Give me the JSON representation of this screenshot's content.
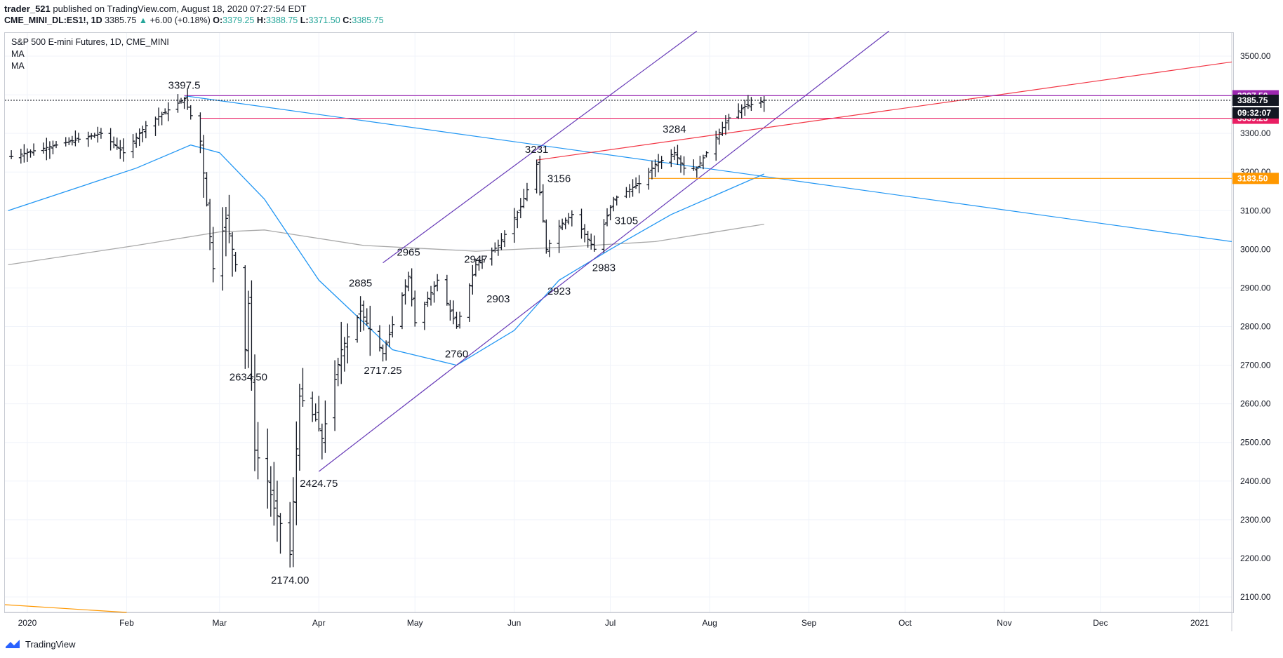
{
  "header": {
    "user": "trader_521",
    "published": " published on TradingView.com, August 18, 2020 07:27:54 EDT",
    "symbol": "CME_MINI_DL:ES1!, 1D",
    "last": "3385.75",
    "change": "+6.00 (+0.18%)",
    "o_label": "O:",
    "o_val": "3379.25",
    "h_label": "H:",
    "h_val": "3388.75",
    "l_label": "L:",
    "l_val": "3371.50",
    "c_label": "C:",
    "c_val": "3385.75"
  },
  "legend": {
    "title": "S&P 500 E-mini Futures, 1D, CME_MINI",
    "ma1": "MA",
    "ma2": "MA"
  },
  "footer": {
    "brand": "TradingView"
  },
  "chart_data": {
    "type": "bar",
    "title": "S&P 500 E-mini Futures, 1D, CME_MINI",
    "ylim": [
      2060,
      3560
    ],
    "y_ticks": [
      2100,
      2200,
      2300,
      2400,
      2500,
      2600,
      2700,
      2800,
      2900,
      3000,
      3100,
      3200,
      3300,
      3400,
      3500
    ],
    "x_ticks": [
      {
        "label": "2020",
        "date": "2020-01-01"
      },
      {
        "label": "Feb",
        "date": "2020-02-01"
      },
      {
        "label": "Mar",
        "date": "2020-03-01"
      },
      {
        "label": "Apr",
        "date": "2020-04-01"
      },
      {
        "label": "May",
        "date": "2020-05-01"
      },
      {
        "label": "Jun",
        "date": "2020-06-01"
      },
      {
        "label": "Jul",
        "date": "2020-07-01"
      },
      {
        "label": "Aug",
        "date": "2020-08-01"
      },
      {
        "label": "Sep",
        "date": "2020-09-01"
      },
      {
        "label": "Oct",
        "date": "2020-10-01"
      },
      {
        "label": "Nov",
        "date": "2020-11-01"
      },
      {
        "label": "Dec",
        "date": "2020-12-01"
      },
      {
        "label": "2021",
        "date": "2021-01-01"
      }
    ],
    "x_range": [
      "2019-12-25",
      "2021-01-11"
    ],
    "anchors": [
      {
        "date": "2019-12-27",
        "price": 3240
      },
      {
        "date": "2020-01-10",
        "price": 3270
      },
      {
        "date": "2020-01-24",
        "price": 3300
      },
      {
        "date": "2020-01-31",
        "price": 3250
      },
      {
        "date": "2020-02-07",
        "price": 3320
      },
      {
        "date": "2020-02-19",
        "price": 3390
      },
      {
        "date": "2020-02-24",
        "price": 3280
      },
      {
        "date": "2020-02-28",
        "price": 2950
      },
      {
        "date": "2020-03-03",
        "price": 3080
      },
      {
        "date": "2020-03-06",
        "price": 2960
      },
      {
        "date": "2020-03-09",
        "price": 2740
      },
      {
        "date": "2020-03-10",
        "price": 2860
      },
      {
        "date": "2020-03-12",
        "price": 2480
      },
      {
        "date": "2020-03-16",
        "price": 2400
      },
      {
        "date": "2020-03-18",
        "price": 2330
      },
      {
        "date": "2020-03-20",
        "price": 2290
      },
      {
        "date": "2020-03-23",
        "price": 2210
      },
      {
        "date": "2020-03-26",
        "price": 2620
      },
      {
        "date": "2020-03-31",
        "price": 2560
      },
      {
        "date": "2020-04-02",
        "price": 2510
      },
      {
        "date": "2020-04-08",
        "price": 2740
      },
      {
        "date": "2020-04-14",
        "price": 2840
      },
      {
        "date": "2020-04-21",
        "price": 2730
      },
      {
        "date": "2020-04-29",
        "price": 2930
      },
      {
        "date": "2020-05-01",
        "price": 2810
      },
      {
        "date": "2020-05-08",
        "price": 2920
      },
      {
        "date": "2020-05-14",
        "price": 2800
      },
      {
        "date": "2020-05-20",
        "price": 2960
      },
      {
        "date": "2020-05-27",
        "price": 3010
      },
      {
        "date": "2020-06-03",
        "price": 3110
      },
      {
        "date": "2020-06-08",
        "price": 3220
      },
      {
        "date": "2020-06-11",
        "price": 3000
      },
      {
        "date": "2020-06-15",
        "price": 3060
      },
      {
        "date": "2020-06-19",
        "price": 3090
      },
      {
        "date": "2020-06-26",
        "price": 3000
      },
      {
        "date": "2020-07-02",
        "price": 3130
      },
      {
        "date": "2020-07-10",
        "price": 3170
      },
      {
        "date": "2020-07-15",
        "price": 3220
      },
      {
        "date": "2020-07-21",
        "price": 3250
      },
      {
        "date": "2020-07-24",
        "price": 3210
      },
      {
        "date": "2020-07-28",
        "price": 3210
      },
      {
        "date": "2020-08-03",
        "price": 3290
      },
      {
        "date": "2020-08-07",
        "price": 3340
      },
      {
        "date": "2020-08-12",
        "price": 3370
      },
      {
        "date": "2020-08-18",
        "price": 3385.75
      }
    ],
    "ma_fast": [
      {
        "date": "2019-12-26",
        "price": 3100
      },
      {
        "date": "2020-02-04",
        "price": 3210
      },
      {
        "date": "2020-02-21",
        "price": 3270
      },
      {
        "date": "2020-03-01",
        "price": 3250
      },
      {
        "date": "2020-03-15",
        "price": 3130
      },
      {
        "date": "2020-04-01",
        "price": 2920
      },
      {
        "date": "2020-04-24",
        "price": 2740
      },
      {
        "date": "2020-05-14",
        "price": 2700
      },
      {
        "date": "2020-06-01",
        "price": 2790
      },
      {
        "date": "2020-06-15",
        "price": 2920
      },
      {
        "date": "2020-07-01",
        "price": 3000
      },
      {
        "date": "2020-07-20",
        "price": 3090
      },
      {
        "date": "2020-08-18",
        "price": 3195
      }
    ],
    "ma_slow": [
      {
        "date": "2019-12-26",
        "price": 2960
      },
      {
        "date": "2020-02-04",
        "price": 3010
      },
      {
        "date": "2020-03-01",
        "price": 3045
      },
      {
        "date": "2020-03-15",
        "price": 3050
      },
      {
        "date": "2020-04-15",
        "price": 3010
      },
      {
        "date": "2020-05-20",
        "price": 2995
      },
      {
        "date": "2020-06-15",
        "price": 3005
      },
      {
        "date": "2020-07-15",
        "price": 3020
      },
      {
        "date": "2020-08-18",
        "price": 3065
      }
    ],
    "trendlines": [
      {
        "name": "blue-down",
        "color": "#2196f3",
        "from": {
          "date": "2020-02-19",
          "price": 3397.5
        },
        "to": {
          "date": "2021-01-11",
          "price": 3020
        }
      },
      {
        "name": "purple-upper",
        "color": "#673ab7",
        "from": {
          "date": "2020-04-21",
          "price": 2965
        },
        "to": {
          "date": "2020-07-28",
          "price": 3565
        }
      },
      {
        "name": "purple-lower",
        "color": "#673ab7",
        "from": {
          "date": "2020-04-01",
          "price": 2424.75
        },
        "to": {
          "date": "2020-09-26",
          "price": 3565
        }
      },
      {
        "name": "red-rising",
        "color": "#f23645",
        "from": {
          "date": "2020-06-08",
          "price": 3231
        },
        "to": {
          "date": "2021-01-11",
          "price": 3485
        }
      },
      {
        "name": "orange-lower-left",
        "color": "#ff9800",
        "from": {
          "date": "2019-12-25",
          "price": 2080
        },
        "to": {
          "date": "2020-02-01",
          "price": 2060
        }
      }
    ],
    "hlines": [
      {
        "price": 3397.5,
        "color": "#9c27b0",
        "from": "2020-02-19",
        "label": "3397.50",
        "tag_bg": "#9c27b0"
      },
      {
        "price": 3385.75,
        "color": "#131722",
        "from": "2019-12-25",
        "dashed": true,
        "label": "3385.75",
        "tag_bg": "#131722"
      },
      {
        "price": 3339.25,
        "color": "#e91e63",
        "from": "2020-02-24",
        "label": "3339.25",
        "tag_bg": "#e91e63"
      },
      {
        "price": 3183.5,
        "color": "#ff9800",
        "from": "2020-07-13",
        "label": "3183.50",
        "tag_bg": "#ff9800"
      }
    ],
    "countdown": "09:32:07",
    "annotations": [
      {
        "text": "3397.5",
        "date": "2020-02-19",
        "price": 3397.5,
        "pos": "above"
      },
      {
        "text": "2634.50",
        "date": "2020-03-10",
        "price": 2700,
        "pos": "below"
      },
      {
        "text": "2174.00",
        "date": "2020-03-23",
        "price": 2174,
        "pos": "below"
      },
      {
        "text": "2424.75",
        "date": "2020-04-01",
        "price": 2424.75,
        "pos": "below"
      },
      {
        "text": "2885",
        "date": "2020-04-14",
        "price": 2885,
        "pos": "above"
      },
      {
        "text": "2717.25",
        "date": "2020-04-21",
        "price": 2717.25,
        "pos": "below"
      },
      {
        "text": "2965",
        "date": "2020-04-29",
        "price": 2965,
        "pos": "above"
      },
      {
        "text": "2760",
        "date": "2020-05-14",
        "price": 2760,
        "pos": "below"
      },
      {
        "text": "2947",
        "date": "2020-05-20",
        "price": 2947,
        "pos": "above"
      },
      {
        "text": "2903",
        "date": "2020-05-27",
        "price": 2903,
        "pos": "below"
      },
      {
        "text": "3231",
        "date": "2020-06-08",
        "price": 3231,
        "pos": "above"
      },
      {
        "text": "3156",
        "date": "2020-06-15",
        "price": 3156,
        "pos": "above"
      },
      {
        "text": "2923",
        "date": "2020-06-15",
        "price": 2923,
        "pos": "below"
      },
      {
        "text": "2983",
        "date": "2020-06-29",
        "price": 2983,
        "pos": "below"
      },
      {
        "text": "3105",
        "date": "2020-07-06",
        "price": 3105,
        "pos": "below"
      },
      {
        "text": "3284",
        "date": "2020-07-21",
        "price": 3284,
        "pos": "above"
      }
    ]
  }
}
